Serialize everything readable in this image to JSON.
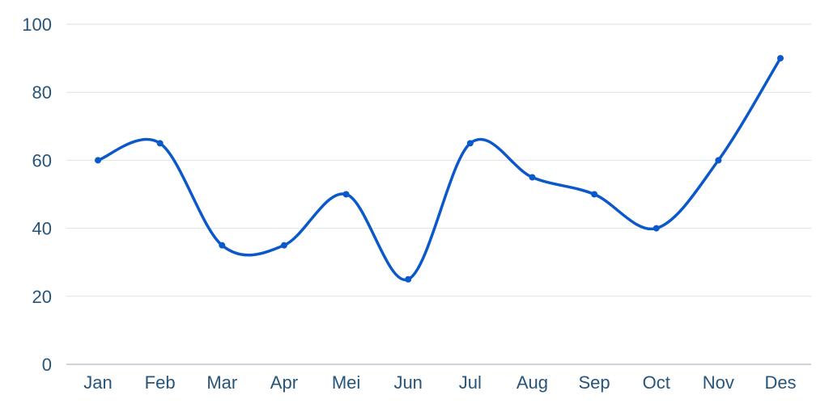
{
  "chart_data": {
    "type": "line",
    "title": "",
    "xlabel": "",
    "ylabel": "",
    "categories": [
      "Jan",
      "Feb",
      "Mar",
      "Apr",
      "Mei",
      "Jun",
      "Jul",
      "Aug",
      "Sep",
      "Oct",
      "Nov",
      "Des"
    ],
    "series": [
      {
        "values": [
          60,
          65,
          35,
          35,
          50,
          25,
          65,
          55,
          50,
          40,
          60,
          90
        ]
      }
    ],
    "ylim": [
      0,
      100
    ],
    "y_ticks": [
      0,
      20,
      40,
      60,
      80,
      100
    ],
    "grid": true,
    "smooth": true,
    "colors": {
      "line": "#0a58c9",
      "grid": "#dde2e6",
      "axis": "#9aa9b6",
      "label": "#27557a"
    }
  }
}
